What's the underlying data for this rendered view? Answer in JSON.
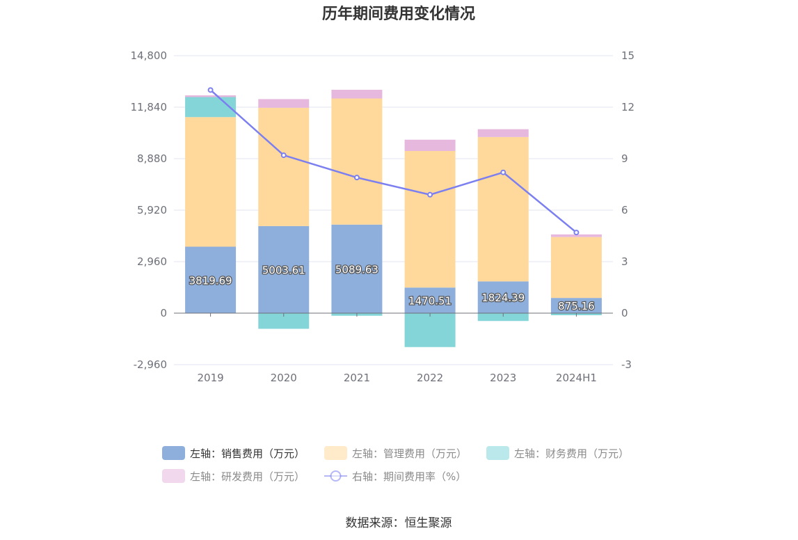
{
  "chart_data": {
    "type": "bar",
    "title": "历年期间费用变化情况",
    "categories": [
      "2019",
      "2020",
      "2021",
      "2022",
      "2023",
      "2024H1"
    ],
    "left_axis": {
      "ticks": [
        "14,800",
        "11,840",
        "8,880",
        "5,920",
        "2,960",
        "0",
        "-2,960"
      ],
      "ylim": [
        -2960,
        14800
      ]
    },
    "right_axis": {
      "ticks": [
        "15",
        "12",
        "9",
        "6",
        "3",
        "0",
        "-3"
      ],
      "ylim": [
        -3,
        15
      ]
    },
    "series": [
      {
        "name": "左轴：销售费用（万元）",
        "type": "bar",
        "color": "#8eaedb",
        "values": [
          3819.69,
          5003.61,
          5089.63,
          1470.51,
          1824.39,
          875.16
        ],
        "labels": [
          "3819.69",
          "5003.61",
          "5089.63",
          "1470.51",
          "1824.39",
          "875.16"
        ]
      },
      {
        "name": "左轴：管理费用（万元）",
        "type": "bar",
        "color": "#ffd99c",
        "values": [
          7450,
          6800,
          7250,
          7850,
          8300,
          3500
        ]
      },
      {
        "name": "左轴：财务费用（万元）",
        "type": "bar",
        "color": "#84d5d8",
        "values": [
          1150,
          -900,
          -150,
          -1950,
          -450,
          -120
        ]
      },
      {
        "name": "左轴：研发费用（万元）",
        "type": "bar",
        "color": "#e6b8de",
        "values": [
          100,
          500,
          500,
          650,
          450,
          150
        ]
      },
      {
        "name": "右轴：期间费用率（%）",
        "type": "line",
        "color": "#7b7ff0",
        "values": [
          13.0,
          9.2,
          7.9,
          6.9,
          8.2,
          4.7
        ]
      }
    ],
    "legend_placement": "bottom",
    "grid": true
  },
  "source": "数据来源：恒生聚源"
}
